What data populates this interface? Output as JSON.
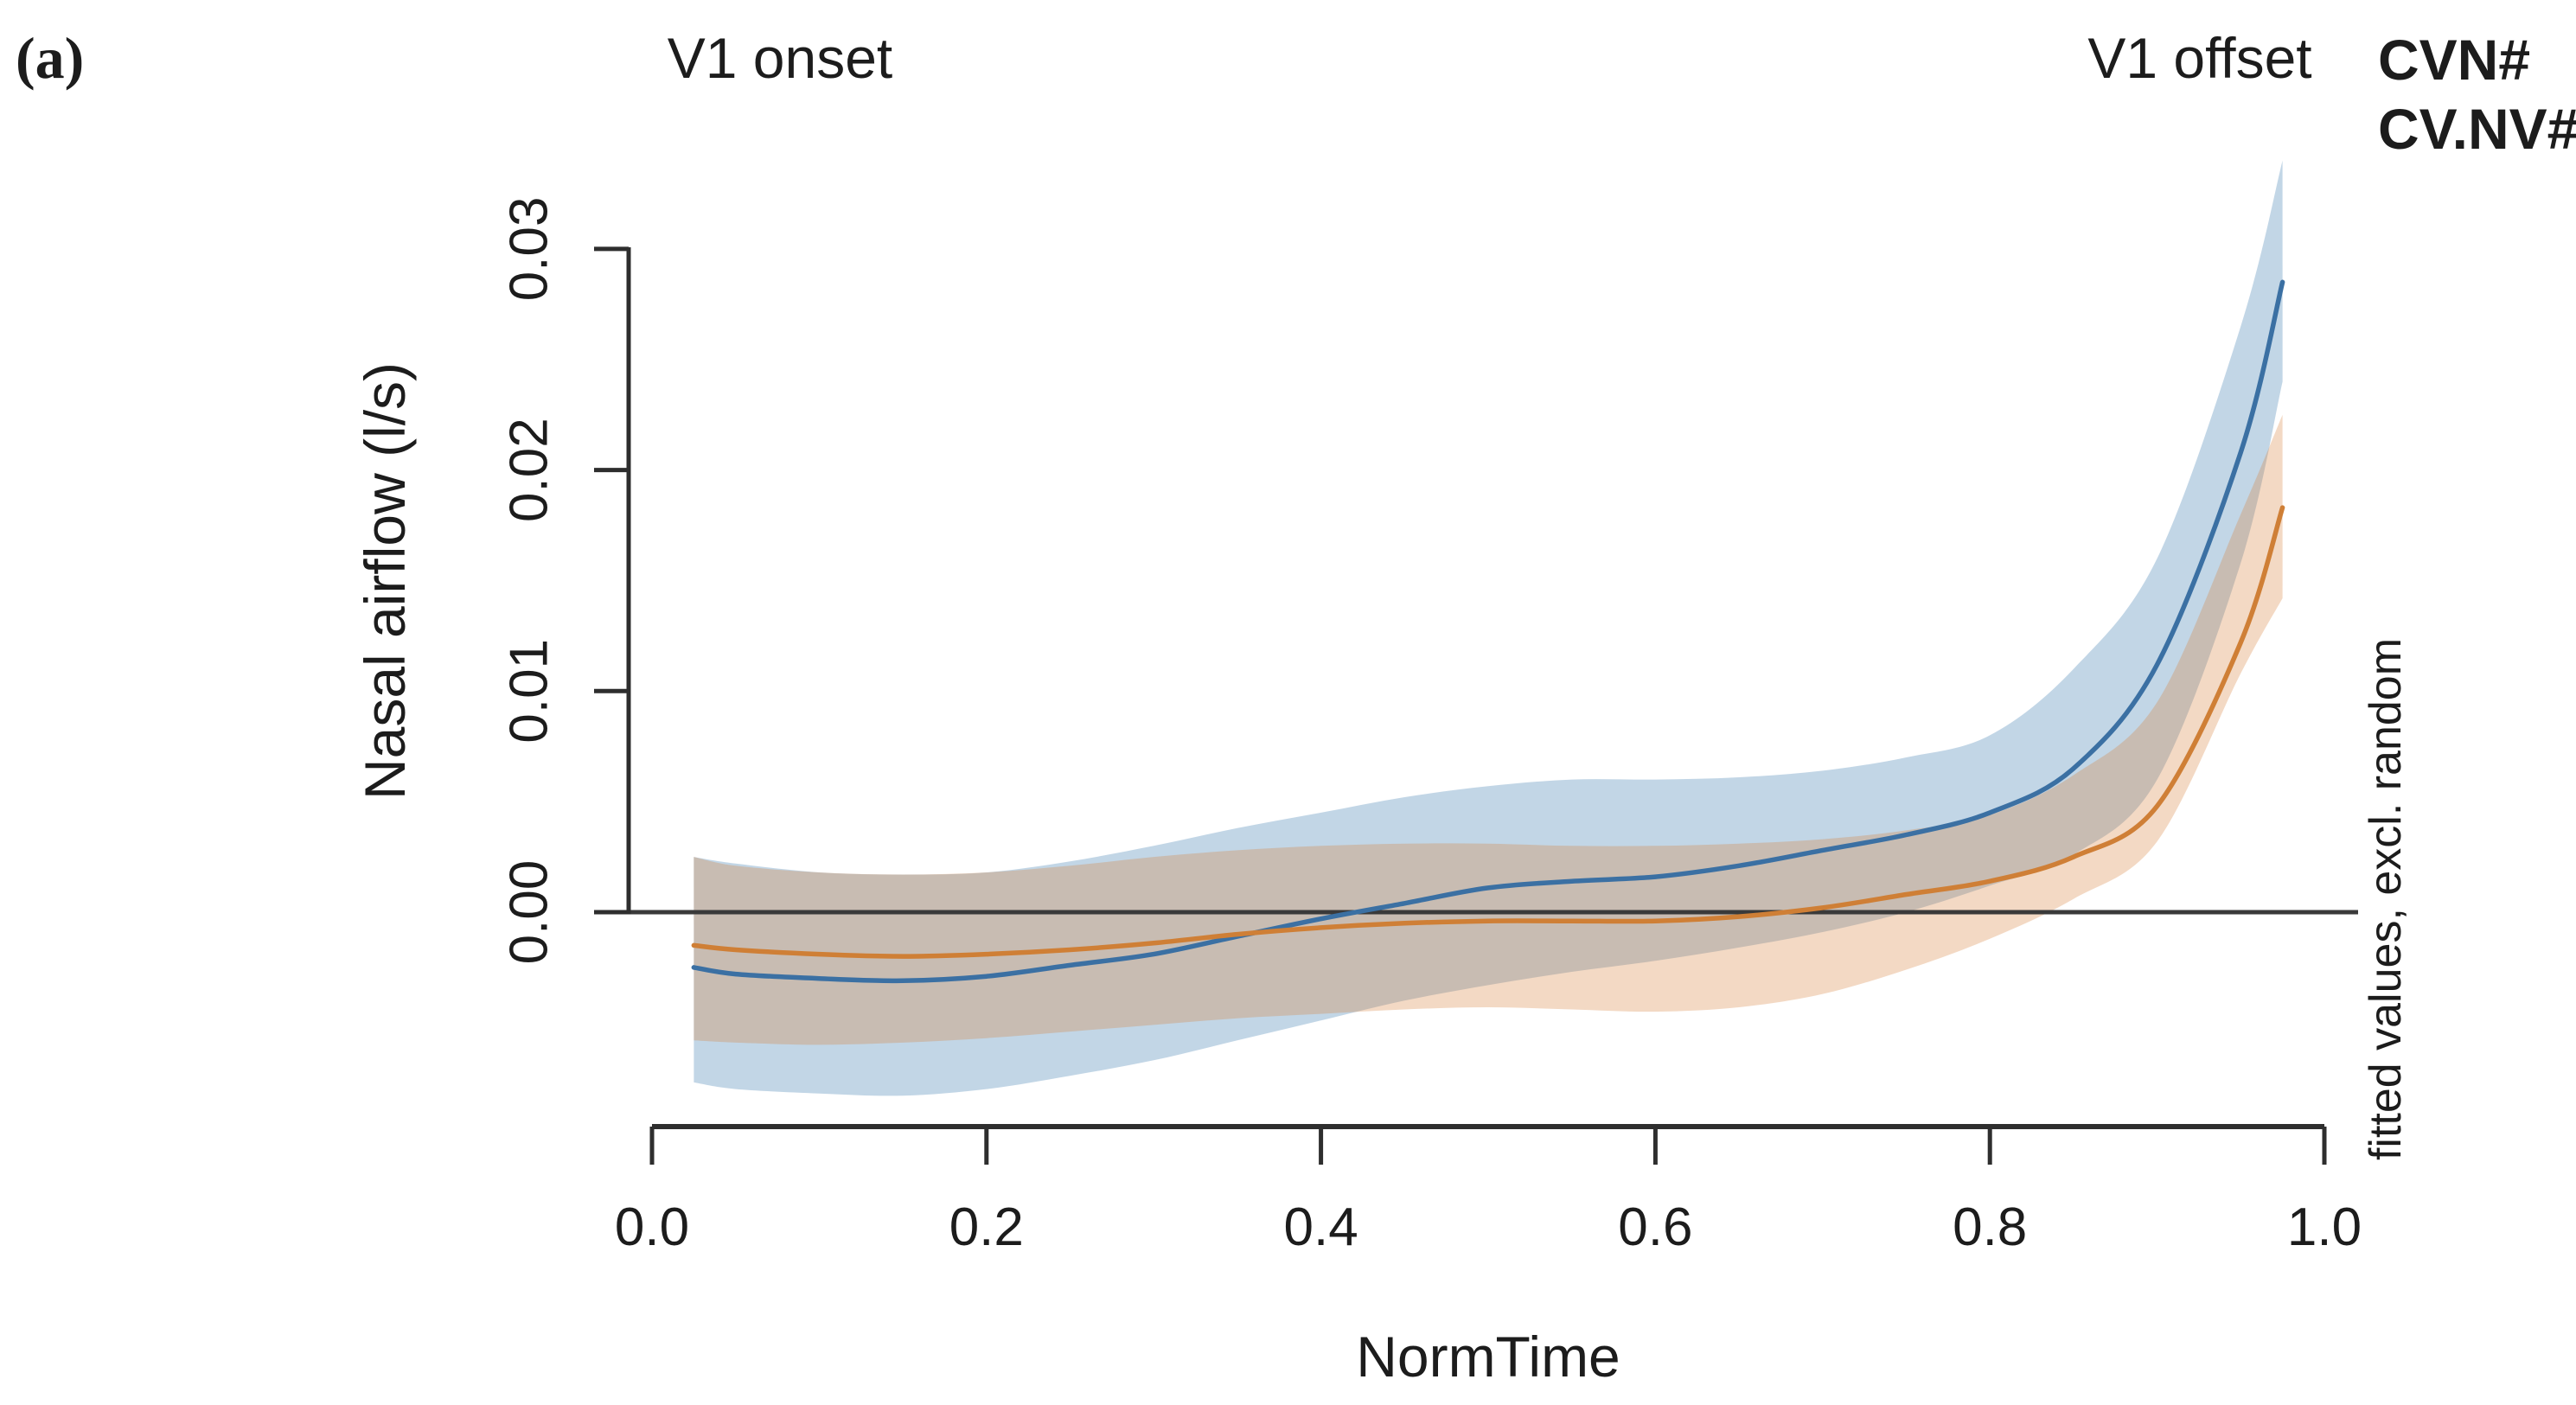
{
  "panel_label": "(a)",
  "annotations": {
    "v1_onset": "V1 onset",
    "v1_offset": "V1 offset"
  },
  "side_note": "fitted values, excl. random",
  "colors": {
    "axis": "#2e2e2e",
    "zero_line": "#3a3a3a",
    "text": "#1c1c1c",
    "side_note_gray": "#666666",
    "cvn_blue": "#2c6fae",
    "cvnv_orange": "#d28140"
  },
  "chart_data": {
    "type": "line",
    "title": "",
    "xlabel": "NormTime",
    "ylabel": "Nasal airflow (l/s)",
    "xlim": [
      0,
      1
    ],
    "ylim": [
      -0.009,
      0.034
    ],
    "grid": false,
    "zero_line": true,
    "legend_position": "top-right",
    "x_ticks": [
      "0.0",
      "0.2",
      "0.4",
      "0.6",
      "0.8",
      "1.0"
    ],
    "y_ticks": [
      "0.00",
      "0.01",
      "0.02",
      "0.03"
    ],
    "x": [
      0.025,
      0.05,
      0.1,
      0.15,
      0.2,
      0.25,
      0.3,
      0.35,
      0.4,
      0.45,
      0.5,
      0.55,
      0.6,
      0.65,
      0.7,
      0.75,
      0.8,
      0.85,
      0.9,
      0.95,
      0.975
    ],
    "series": [
      {
        "name": "CVN#",
        "color": "#2c6fae",
        "line_color": "#3b70a3",
        "band_color": "rgba(70,130,180,0.33)",
        "y": [
          -0.0025,
          -0.0028,
          -0.003,
          -0.0031,
          -0.0029,
          -0.0024,
          -0.0019,
          -0.0011,
          -0.0003,
          0.0004,
          0.0011,
          0.0014,
          0.0016,
          0.0021,
          0.0028,
          0.0035,
          0.0045,
          0.0065,
          0.0112,
          0.0208,
          0.0285
        ],
        "upper": [
          0.0025,
          0.0022,
          0.0018,
          0.0017,
          0.0018,
          0.0023,
          0.003,
          0.0038,
          0.0045,
          0.0052,
          0.0057,
          0.006,
          0.006,
          0.0061,
          0.0064,
          0.007,
          0.008,
          0.011,
          0.016,
          0.0265,
          0.034
        ],
        "lower": [
          -0.0077,
          -0.008,
          -0.0082,
          -0.0083,
          -0.008,
          -0.0074,
          -0.0067,
          -0.0058,
          -0.0049,
          -0.004,
          -0.0033,
          -0.0027,
          -0.0022,
          -0.0016,
          -0.0009,
          0.0,
          0.0012,
          0.0026,
          0.006,
          0.0158,
          0.024
        ]
      },
      {
        "name": "CV.NV#",
        "color": "#d28140",
        "line_color": "#cf7f36",
        "band_color": "rgba(214,128,60,0.30)",
        "y": [
          -0.0015,
          -0.0017,
          -0.0019,
          -0.002,
          -0.0019,
          -0.0017,
          -0.0014,
          -0.001,
          -0.0007,
          -0.0005,
          -0.0004,
          -0.0004,
          -0.0004,
          -0.0002,
          0.0002,
          0.0008,
          0.0014,
          0.0025,
          0.0048,
          0.0122,
          0.0183
        ],
        "upper": [
          0.0025,
          0.0021,
          0.0018,
          0.0017,
          0.0018,
          0.0021,
          0.0025,
          0.0028,
          0.003,
          0.0031,
          0.0031,
          0.003,
          0.003,
          0.0031,
          0.0033,
          0.0037,
          0.0044,
          0.0062,
          0.0095,
          0.018,
          0.0225
        ],
        "lower": [
          -0.0058,
          -0.0059,
          -0.006,
          -0.0059,
          -0.0057,
          -0.0054,
          -0.0051,
          -0.0048,
          -0.0046,
          -0.0044,
          -0.0043,
          -0.0044,
          -0.0045,
          -0.0043,
          -0.0037,
          -0.0026,
          -0.0012,
          0.0006,
          0.0032,
          0.0108,
          0.0142
        ]
      }
    ]
  }
}
